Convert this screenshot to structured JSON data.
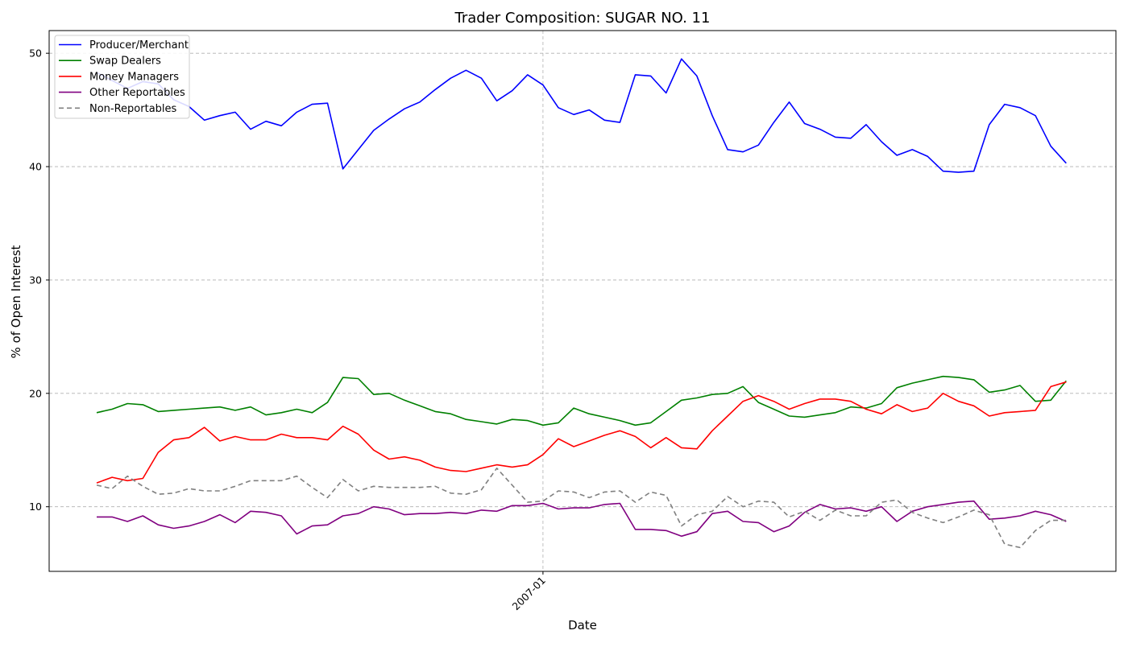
{
  "chart_data": {
    "type": "line",
    "title": "Trader Composition: SUGAR NO. 11",
    "xlabel": "Date",
    "ylabel": "% of Open Interest",
    "ylim": [
      4.3,
      52
    ],
    "yticks": [
      10,
      20,
      30,
      40,
      50
    ],
    "xticks": [
      {
        "index": 29,
        "label": "2007-01"
      }
    ],
    "grid": true,
    "legend_position": "top-left",
    "n_points": 64,
    "series": [
      {
        "name": "Producer/Merchant",
        "color": "#0000ff",
        "dash": "solid",
        "values": [
          48.3,
          47.6,
          46.9,
          47.5,
          47.3,
          45.9,
          45.3,
          44.1,
          44.5,
          44.8,
          43.3,
          44.0,
          43.6,
          44.8,
          45.5,
          45.6,
          39.8,
          41.5,
          43.2,
          44.2,
          45.1,
          45.7,
          46.8,
          47.8,
          48.5,
          47.8,
          45.8,
          46.7,
          48.1,
          47.2,
          45.2,
          44.6,
          45.0,
          44.1,
          43.9,
          48.1,
          48.0,
          46.5,
          49.5,
          48.0,
          44.5,
          41.5,
          41.3,
          41.9,
          43.9,
          45.7,
          43.8,
          43.3,
          42.6,
          42.5,
          43.7,
          42.2,
          41.0,
          41.5,
          40.9,
          39.6,
          39.5,
          39.6,
          43.7,
          45.5,
          45.2,
          44.5,
          41.8,
          40.3
        ]
      },
      {
        "name": "Swap Dealers",
        "color": "#008000",
        "dash": "solid",
        "values": [
          18.3,
          18.6,
          19.1,
          19.0,
          18.4,
          18.5,
          18.6,
          18.7,
          18.8,
          18.5,
          18.8,
          18.1,
          18.3,
          18.6,
          18.3,
          19.2,
          21.4,
          21.3,
          19.9,
          20.0,
          19.4,
          18.9,
          18.4,
          18.2,
          17.7,
          17.5,
          17.3,
          17.7,
          17.6,
          17.2,
          17.4,
          18.7,
          18.2,
          17.9,
          17.6,
          17.2,
          17.4,
          18.4,
          19.4,
          19.6,
          19.9,
          20.0,
          20.6,
          19.2,
          18.6,
          18.0,
          17.9,
          18.1,
          18.3,
          18.8,
          18.7,
          19.1,
          20.5,
          20.9,
          21.2,
          21.5,
          21.4,
          21.2,
          20.1,
          20.3,
          20.7,
          19.3,
          19.4,
          21.1
        ]
      },
      {
        "name": "Money Managers",
        "color": "#ff0000",
        "dash": "solid",
        "values": [
          12.1,
          12.6,
          12.3,
          12.5,
          14.8,
          15.9,
          16.1,
          17.0,
          15.8,
          16.2,
          15.9,
          15.9,
          16.4,
          16.1,
          16.1,
          15.9,
          17.1,
          16.4,
          15.0,
          14.2,
          14.4,
          14.1,
          13.5,
          13.2,
          13.1,
          13.4,
          13.7,
          13.5,
          13.7,
          14.6,
          16.0,
          15.3,
          15.8,
          16.3,
          16.7,
          16.2,
          15.2,
          16.1,
          15.2,
          15.1,
          16.7,
          18.0,
          19.3,
          19.8,
          19.3,
          18.6,
          19.1,
          19.5,
          19.5,
          19.3,
          18.6,
          18.2,
          19.0,
          18.4,
          18.7,
          20.0,
          19.3,
          18.9,
          18.0,
          18.3,
          18.4,
          18.5,
          20.6,
          21.0
        ]
      },
      {
        "name": "Other Reportables",
        "color": "#800080",
        "dash": "solid",
        "values": [
          9.1,
          9.1,
          8.7,
          9.2,
          8.4,
          8.1,
          8.3,
          8.7,
          9.3,
          8.6,
          9.6,
          9.5,
          9.2,
          7.6,
          8.3,
          8.4,
          9.2,
          9.4,
          10.0,
          9.8,
          9.3,
          9.4,
          9.4,
          9.5,
          9.4,
          9.7,
          9.6,
          10.1,
          10.1,
          10.3,
          9.8,
          9.9,
          9.9,
          10.2,
          10.3,
          8.0,
          8.0,
          7.9,
          7.4,
          7.8,
          9.4,
          9.6,
          8.7,
          8.6,
          7.8,
          8.3,
          9.5,
          10.2,
          9.8,
          9.9,
          9.6,
          10.0,
          8.7,
          9.6,
          10.0,
          10.2,
          10.4,
          10.5,
          8.9,
          9.0,
          9.2,
          9.6,
          9.3,
          8.7
        ]
      },
      {
        "name": "Non-Reportables",
        "color": "#808080",
        "dash": "dashed",
        "values": [
          11.9,
          11.6,
          12.7,
          11.8,
          11.1,
          11.2,
          11.6,
          11.4,
          11.4,
          11.8,
          12.3,
          12.3,
          12.3,
          12.7,
          11.7,
          10.8,
          12.4,
          11.4,
          11.8,
          11.7,
          11.7,
          11.7,
          11.8,
          11.2,
          11.1,
          11.5,
          13.4,
          11.9,
          10.4,
          10.5,
          11.4,
          11.3,
          10.8,
          11.3,
          11.4,
          10.4,
          11.3,
          11.0,
          8.3,
          9.3,
          9.6,
          10.9,
          10.0,
          10.5,
          10.4,
          9.1,
          9.6,
          8.8,
          9.7,
          9.2,
          9.2,
          10.4,
          10.6,
          9.5,
          9.0,
          8.6,
          9.1,
          9.7,
          9.3,
          6.7,
          6.4,
          7.9,
          8.8,
          8.8
        ]
      }
    ]
  }
}
